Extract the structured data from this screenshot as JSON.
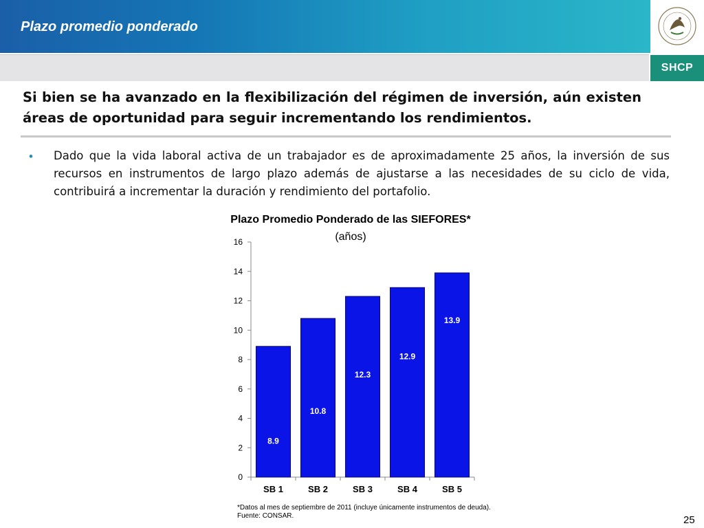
{
  "header": {
    "title": "Plazo promedio ponderado",
    "logo_label": "SHCP"
  },
  "headline": "Si bien se ha avanzado en la flexibilización del régimen de inversión, aún existen áreas de oportunidad para seguir incrementando los rendimientos.",
  "bullet": {
    "marker": "•",
    "text": "Dado que la vida laboral activa de un trabajador es de aproximadamente 25 años, la inversión de sus recursos en instrumentos de largo plazo además de ajustarse a las necesidades de su ciclo de vida, contribuirá a incrementar la duración y rendimiento del portafolio."
  },
  "chart_data": {
    "type": "bar",
    "title": "Plazo Promedio Ponderado de las SIEFORES*",
    "subtitle": "(años)",
    "categories": [
      "SB 1",
      "SB 2",
      "SB 3",
      "SB 4",
      "SB 5"
    ],
    "values": [
      8.9,
      10.8,
      12.3,
      12.9,
      13.9
    ],
    "data_labels": [
      "8.9",
      "10.8",
      "12.3",
      "12.9",
      "13.9"
    ],
    "ylim": [
      0,
      16
    ],
    "yticks": [
      0,
      2,
      4,
      6,
      8,
      10,
      12,
      14,
      16
    ],
    "grid": false,
    "legend": "none",
    "bar_color": "#0a14e6",
    "label_color": "#ffffff"
  },
  "footnotes": {
    "line1": "*Datos al mes de septiembre de 2011 (incluye únicamente instrumentos de deuda).",
    "line2": "Fuente: CONSAR."
  },
  "page_number": "25"
}
